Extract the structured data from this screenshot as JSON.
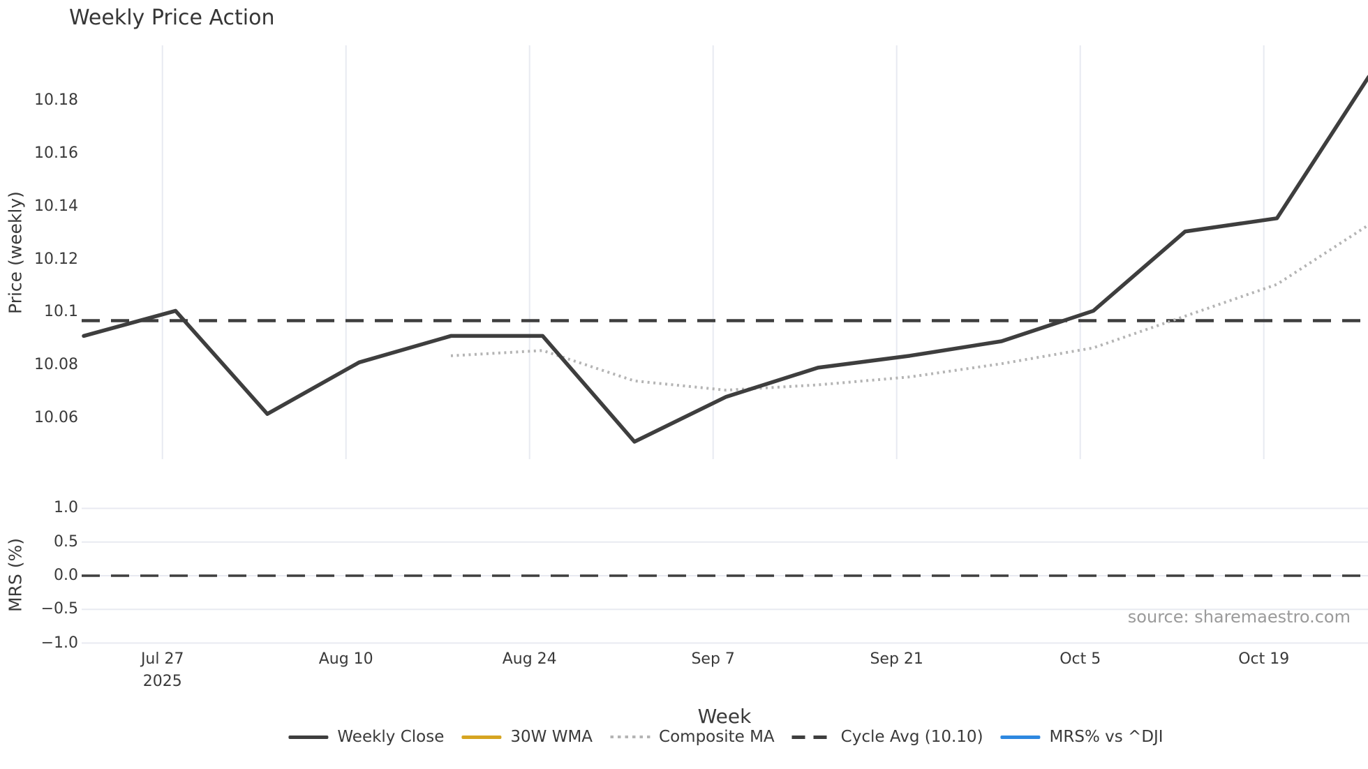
{
  "title": "Weekly Price Action",
  "xlabel": "Week",
  "source": "source: sharemaestro.com",
  "colors": {
    "weekly_close": "#3e3e3e",
    "wma_30w": "#d6a521",
    "composite_ma": "#b4b4b4",
    "cycle_avg": "#3e3e3e",
    "mrs_line": "#2e88e0",
    "gridline": "#e8eaf1",
    "text": "#3a3a3a",
    "muted_text": "#9a9a9a"
  },
  "legend": {
    "items": [
      {
        "label": "Weekly Close",
        "style": "solid",
        "color": "#3e3e3e"
      },
      {
        "label": "30W WMA",
        "style": "solid",
        "color": "#d6a521"
      },
      {
        "label": "Composite MA",
        "style": "dotted",
        "color": "#b4b4b4"
      },
      {
        "label": "Cycle Avg (10.10)",
        "style": "dashed",
        "color": "#3e3e3e"
      },
      {
        "label": "MRS% vs ^DJI",
        "style": "solid",
        "color": "#2e88e0"
      }
    ]
  },
  "x_axis": {
    "start_date": "2025-07-21",
    "span_days": 98,
    "ticks": [
      {
        "date": "2025-07-27",
        "label": "Jul 27",
        "sub": "2025"
      },
      {
        "date": "2025-08-10",
        "label": "Aug 10",
        "sub": ""
      },
      {
        "date": "2025-08-24",
        "label": "Aug 24",
        "sub": ""
      },
      {
        "date": "2025-09-07",
        "label": "Sep 7",
        "sub": ""
      },
      {
        "date": "2025-09-21",
        "label": "Sep 21",
        "sub": ""
      },
      {
        "date": "2025-10-05",
        "label": "Oct 5",
        "sub": ""
      },
      {
        "date": "2025-10-19",
        "label": "Oct 19",
        "sub": ""
      }
    ]
  },
  "chart_data": {
    "type": "line",
    "title": "Weekly Price Action",
    "xlabel": "Week",
    "legend_position": "bottom-center",
    "panels": [
      {
        "name": "price",
        "ylabel": "Price (weekly)",
        "ylim": [
          10.0444,
          10.2009
        ],
        "yticks": [
          10.06,
          10.08,
          10.1,
          10.12,
          10.14,
          10.16,
          10.18
        ],
        "ytick_labels": [
          "10.06",
          "10.08",
          "10.1",
          "10.12",
          "10.14",
          "10.16",
          "10.18"
        ],
        "grid": "vertical-only",
        "series": [
          {
            "name": "Weekly Close",
            "style": "solid",
            "color": "#3e3e3e",
            "width": 5.5,
            "dates": [
              "2025-07-21",
              "2025-07-28",
              "2025-08-04",
              "2025-08-11",
              "2025-08-18",
              "2025-08-25",
              "2025-09-01",
              "2025-09-08",
              "2025-09-15",
              "2025-09-22",
              "2025-09-29",
              "2025-10-06",
              "2025-10-13",
              "2025-10-20",
              "2025-10-27"
            ],
            "values": [
              10.091,
              10.1005,
              10.0615,
              10.081,
              10.091,
              10.091,
              10.051,
              10.068,
              10.079,
              10.0835,
              10.089,
              10.1005,
              10.1305,
              10.1355,
              10.189
            ]
          },
          {
            "name": "30W WMA",
            "style": "solid",
            "color": "#d6a521",
            "width": 5,
            "dates": [],
            "values": [],
            "visible_in_plot": false
          },
          {
            "name": "Composite MA",
            "style": "dotted",
            "color": "#b4b4b4",
            "width": 4,
            "dates": [
              "2025-08-18",
              "2025-08-25",
              "2025-09-01",
              "2025-09-08",
              "2025-09-15",
              "2025-09-22",
              "2025-09-29",
              "2025-10-06",
              "2025-10-13",
              "2025-10-20",
              "2025-10-27"
            ],
            "values": [
              10.0835,
              10.0855,
              10.074,
              10.0705,
              10.0725,
              10.0755,
              10.0805,
              10.0865,
              10.0985,
              10.1105,
              10.133
            ]
          },
          {
            "name": "Cycle Avg (10.10)",
            "style": "dashed",
            "color": "#3e3e3e",
            "width": 4.5,
            "hline": 10.0968
          }
        ]
      },
      {
        "name": "mrs",
        "ylabel": "MRS (%)",
        "ylim": [
          -1.088,
          1.088
        ],
        "yticks": [
          1.0,
          0.5,
          0.0,
          -0.5,
          -1.0
        ],
        "ytick_labels": [
          "1.0",
          "0.5",
          "0.0",
          "−0.5",
          "−1.0"
        ],
        "grid": "horizontal-only",
        "series": [
          {
            "name": "MRS% vs ^DJI",
            "style": "solid",
            "color": "#2e88e0",
            "width": 5,
            "dates": [],
            "values": [],
            "visible_in_plot": false
          },
          {
            "name": "zero reference",
            "style": "dashed",
            "color": "#3e3e3e",
            "width": 3.5,
            "hline": 0.0
          }
        ]
      }
    ]
  }
}
